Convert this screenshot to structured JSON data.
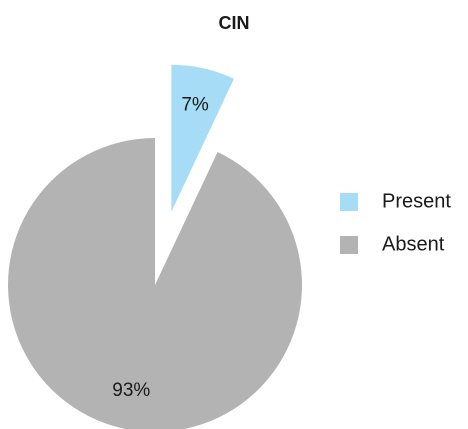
{
  "chart_data": {
    "type": "pie",
    "title": "CIN",
    "categories": [
      "Present",
      "Absent"
    ],
    "values": [
      7,
      93
    ],
    "value_labels": [
      "7%",
      "93%"
    ],
    "colors": [
      "#a6dcf5",
      "#b3b3b3"
    ],
    "explode": [
      true,
      false
    ],
    "legend": "right"
  }
}
